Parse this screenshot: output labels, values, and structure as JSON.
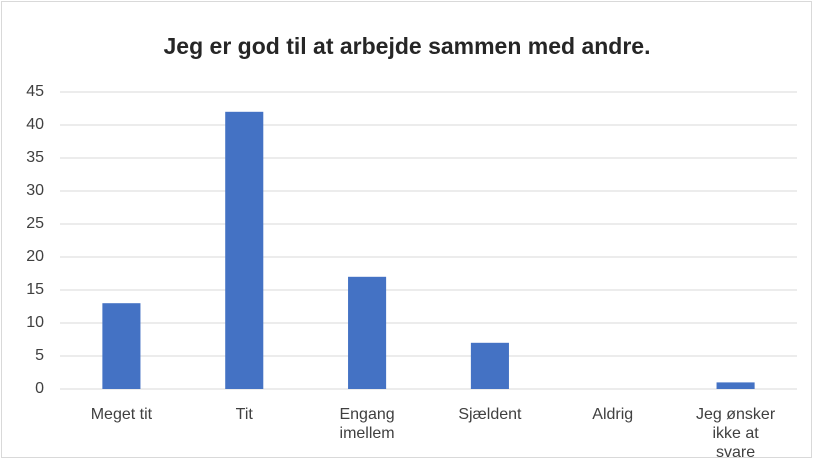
{
  "chart_data": {
    "type": "bar",
    "title": "Jeg er god til at arbejde sammen med andre.",
    "categories": [
      "Meget tit",
      "Tit",
      "Engang imellem",
      "Sjældent",
      "Aldrig",
      "Jeg ønsker ikke at svare"
    ],
    "values": [
      13,
      42,
      17,
      7,
      0,
      1
    ],
    "color": "#4472c4",
    "ylim": [
      0,
      45
    ],
    "yticks": [
      0,
      5,
      10,
      15,
      20,
      25,
      30,
      35,
      40,
      45
    ],
    "grid": true
  }
}
